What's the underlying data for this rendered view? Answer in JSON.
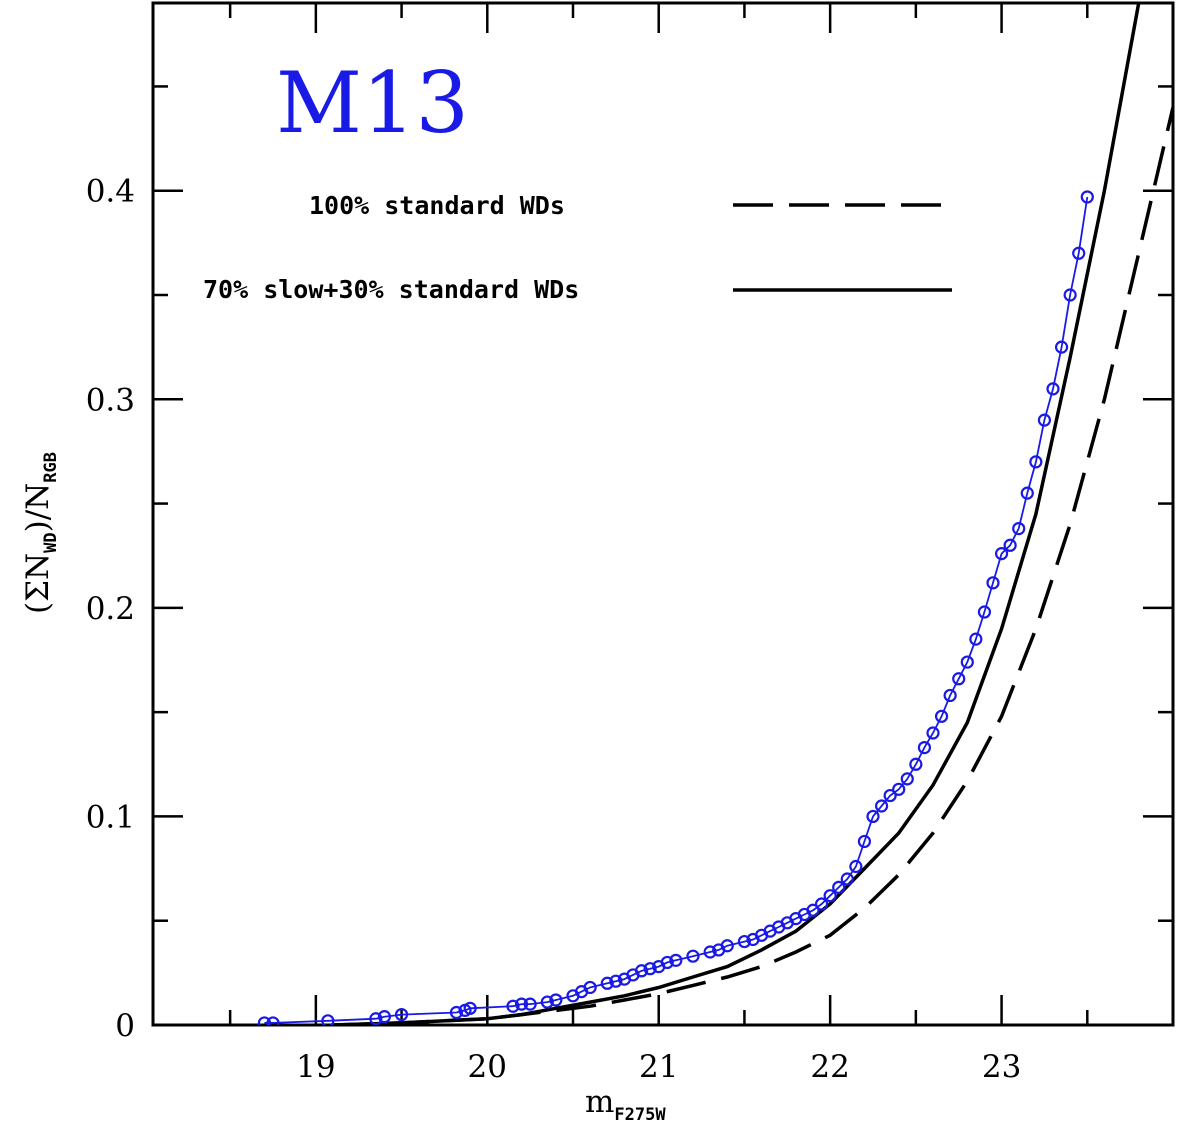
{
  "chart_data": {
    "type": "line",
    "title": "",
    "annotation": "M13",
    "xlabel": {
      "main": "m",
      "sub": "F275W"
    },
    "ylabel": {
      "open": "(ΣN",
      "sub1": "WD",
      "mid": ")/N",
      "sub2": "RGB"
    },
    "xlim": [
      18.05,
      24.0
    ],
    "ylim": [
      0,
      0.49
    ],
    "x_ticks": [
      19,
      20,
      21,
      22,
      23
    ],
    "x_tick_labels": [
      "19",
      "20",
      "21",
      "22",
      "23"
    ],
    "y_ticks": [
      0,
      0.1,
      0.2,
      0.3,
      0.4
    ],
    "y_tick_labels": [
      "0",
      "0.1",
      "0.2",
      "0.3",
      "0.4"
    ],
    "legend": {
      "placement": "top-center",
      "entries": [
        {
          "label": "100% standard WDs",
          "series": "standard"
        },
        {
          "label": "70% slow+30% standard WDs",
          "series": "mixed"
        }
      ]
    },
    "colors": {
      "observed": "#1a1ae6",
      "models": "#000000",
      "annotation": "#1a1ae6"
    },
    "series": [
      {
        "key": "observed",
        "style": "markers+line",
        "x": [
          18.7,
          18.75,
          19.07,
          19.35,
          19.4,
          19.5,
          19.82,
          19.87,
          19.9,
          20.15,
          20.2,
          20.25,
          20.35,
          20.4,
          20.5,
          20.55,
          20.6,
          20.7,
          20.75,
          20.8,
          20.85,
          20.9,
          20.95,
          21.0,
          21.05,
          21.1,
          21.2,
          21.3,
          21.35,
          21.4,
          21.5,
          21.55,
          21.6,
          21.65,
          21.7,
          21.75,
          21.8,
          21.85,
          21.9,
          21.95,
          22.0,
          22.05,
          22.1,
          22.15,
          22.2,
          22.25,
          22.3,
          22.35,
          22.4,
          22.45,
          22.5,
          22.55,
          22.6,
          22.65,
          22.7,
          22.75,
          22.8,
          22.85,
          22.9,
          22.95,
          23.0,
          23.05,
          23.1,
          23.15,
          23.2,
          23.25,
          23.3,
          23.35,
          23.4,
          23.45,
          23.5
        ],
        "y": [
          0.001,
          0.001,
          0.002,
          0.003,
          0.004,
          0.005,
          0.006,
          0.007,
          0.008,
          0.009,
          0.01,
          0.01,
          0.011,
          0.012,
          0.014,
          0.016,
          0.018,
          0.02,
          0.021,
          0.022,
          0.024,
          0.026,
          0.027,
          0.028,
          0.03,
          0.031,
          0.033,
          0.035,
          0.036,
          0.038,
          0.04,
          0.041,
          0.043,
          0.045,
          0.047,
          0.049,
          0.051,
          0.053,
          0.055,
          0.058,
          0.062,
          0.066,
          0.07,
          0.076,
          0.088,
          0.1,
          0.105,
          0.11,
          0.113,
          0.118,
          0.125,
          0.133,
          0.14,
          0.148,
          0.158,
          0.166,
          0.174,
          0.185,
          0.198,
          0.212,
          0.226,
          0.23,
          0.238,
          0.255,
          0.27,
          0.29,
          0.305,
          0.325,
          0.35,
          0.37,
          0.397
        ]
      },
      {
        "key": "standard",
        "name": "100% standard WDs",
        "style": "dashed",
        "x": [
          19.1,
          19.5,
          20.0,
          20.2,
          20.4,
          20.6,
          20.8,
          21.0,
          21.2,
          21.4,
          21.6,
          21.8,
          22.0,
          22.2,
          22.4,
          22.6,
          22.8,
          23.0,
          23.2,
          23.4,
          23.6,
          23.8,
          24.0
        ],
        "y": [
          0.0,
          0.001,
          0.003,
          0.005,
          0.007,
          0.009,
          0.012,
          0.015,
          0.019,
          0.023,
          0.028,
          0.035,
          0.043,
          0.056,
          0.072,
          0.092,
          0.117,
          0.148,
          0.19,
          0.24,
          0.3,
          0.37,
          0.44
        ]
      },
      {
        "key": "mixed",
        "name": "70% slow+30% standard WDs",
        "style": "solid",
        "x": [
          19.1,
          19.5,
          20.0,
          20.2,
          20.4,
          20.6,
          20.8,
          21.0,
          21.2,
          21.4,
          21.6,
          21.8,
          22.0,
          22.2,
          22.4,
          22.6,
          22.8,
          23.0,
          23.2,
          23.4,
          23.6,
          23.8
        ],
        "y": [
          0.0,
          0.001,
          0.003,
          0.005,
          0.008,
          0.011,
          0.014,
          0.018,
          0.023,
          0.028,
          0.036,
          0.045,
          0.058,
          0.075,
          0.092,
          0.115,
          0.145,
          0.19,
          0.245,
          0.32,
          0.4,
          0.49
        ]
      }
    ]
  }
}
